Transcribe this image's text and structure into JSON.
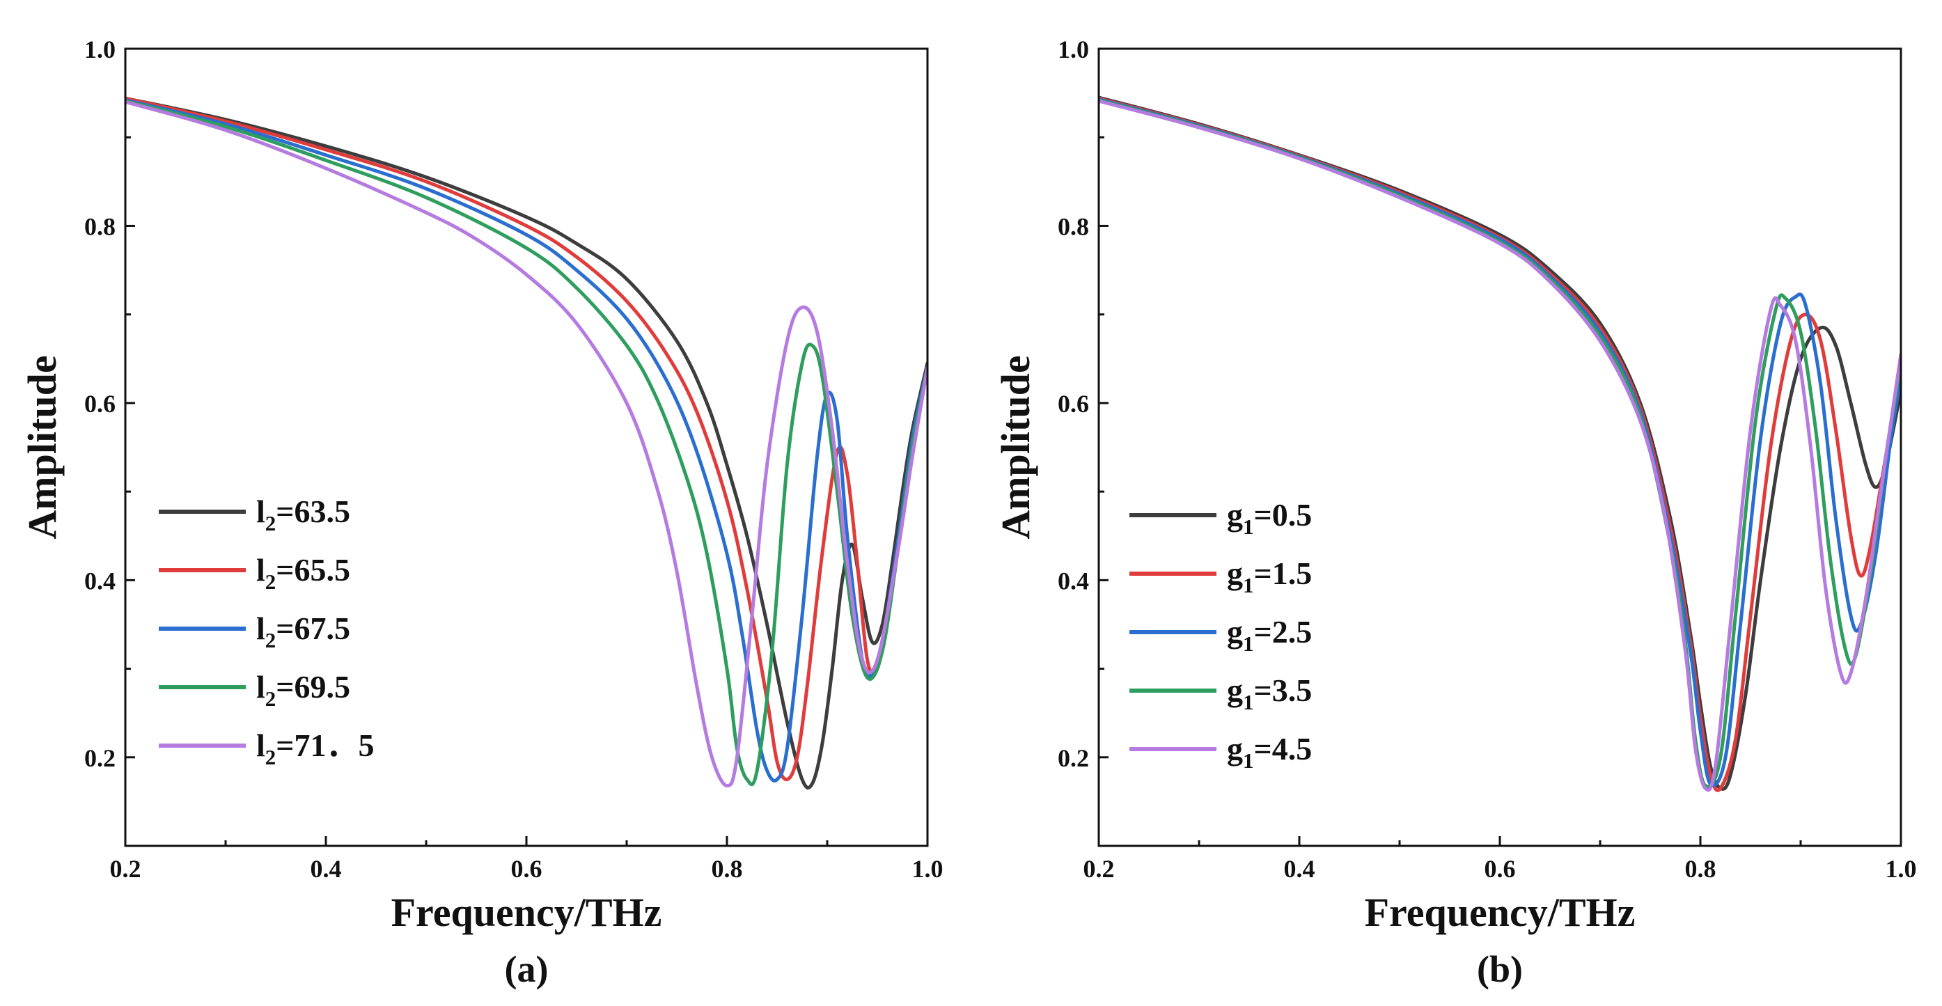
{
  "chart_data": [
    {
      "type": "line",
      "panel_label": "(a)",
      "xlabel": "Frequency/THz",
      "ylabel": "Amplitude",
      "xlim": [
        0.2,
        1.0
      ],
      "ylim": [
        0.1,
        1.0
      ],
      "x_ticks": [
        0.2,
        0.4,
        0.6,
        0.8,
        1.0
      ],
      "x_tick_labels": [
        "0.2",
        "0.4",
        "0.6",
        "0.8",
        "1.0"
      ],
      "y_ticks": [
        0.2,
        0.4,
        0.6,
        0.8,
        1.0
      ],
      "y_tick_labels": [
        "0.2",
        "0.4",
        "0.6",
        "0.8",
        "1.0"
      ],
      "legend_position": "lower-left",
      "series": [
        {
          "name": "l2=63.5",
          "label_main": "l",
          "label_sub": "2",
          "label_rest": "=63.5",
          "color": "#3d3d3d",
          "x": [
            0.2,
            0.3,
            0.4,
            0.5,
            0.6,
            0.65,
            0.7,
            0.75,
            0.78,
            0.8,
            0.82,
            0.84,
            0.86,
            0.875,
            0.885,
            0.895,
            0.905,
            0.915,
            0.925,
            0.935,
            0.945,
            0.955,
            0.965,
            0.975,
            0.985,
            1.0
          ],
          "y": [
            0.944,
            0.92,
            0.89,
            0.855,
            0.81,
            0.78,
            0.74,
            0.67,
            0.6,
            0.53,
            0.45,
            0.35,
            0.24,
            0.175,
            0.17,
            0.215,
            0.3,
            0.4,
            0.44,
            0.38,
            0.33,
            0.35,
            0.42,
            0.5,
            0.57,
            0.645
          ]
        },
        {
          "name": "l2=65.5",
          "label_main": "l",
          "label_sub": "2",
          "label_rest": "=65.5",
          "color": "#e03c3c",
          "x": [
            0.2,
            0.3,
            0.4,
            0.5,
            0.6,
            0.65,
            0.7,
            0.74,
            0.77,
            0.8,
            0.82,
            0.84,
            0.85,
            0.86,
            0.87,
            0.88,
            0.895,
            0.91,
            0.92,
            0.93,
            0.94,
            0.95,
            0.96,
            0.975,
            0.99,
            1.0
          ],
          "y": [
            0.944,
            0.918,
            0.886,
            0.85,
            0.8,
            0.765,
            0.715,
            0.655,
            0.59,
            0.49,
            0.39,
            0.265,
            0.195,
            0.175,
            0.2,
            0.28,
            0.43,
            0.545,
            0.52,
            0.42,
            0.31,
            0.3,
            0.36,
            0.47,
            0.58,
            0.64
          ]
        },
        {
          "name": "l2=67.5",
          "label_main": "l",
          "label_sub": "2",
          "label_rest": "=67.5",
          "color": "#2a6fcf",
          "x": [
            0.2,
            0.3,
            0.4,
            0.5,
            0.6,
            0.65,
            0.7,
            0.74,
            0.77,
            0.8,
            0.815,
            0.83,
            0.84,
            0.85,
            0.86,
            0.875,
            0.89,
            0.9,
            0.91,
            0.92,
            0.935,
            0.945,
            0.955,
            0.97,
            0.985,
            1.0
          ],
          "y": [
            0.942,
            0.915,
            0.88,
            0.842,
            0.79,
            0.75,
            0.695,
            0.625,
            0.545,
            0.43,
            0.34,
            0.23,
            0.185,
            0.175,
            0.21,
            0.36,
            0.54,
            0.61,
            0.58,
            0.45,
            0.31,
            0.295,
            0.33,
            0.44,
            0.56,
            0.64
          ]
        },
        {
          "name": "l2=69.5",
          "label_main": "l",
          "label_sub": "2",
          "label_rest": "=69.5",
          "color": "#2e9e5e",
          "x": [
            0.2,
            0.3,
            0.4,
            0.5,
            0.6,
            0.65,
            0.7,
            0.73,
            0.76,
            0.78,
            0.8,
            0.81,
            0.82,
            0.83,
            0.845,
            0.86,
            0.875,
            0.885,
            0.895,
            0.91,
            0.925,
            0.94,
            0.955,
            0.97,
            0.985,
            1.0
          ],
          "y": [
            0.941,
            0.912,
            0.874,
            0.832,
            0.775,
            0.73,
            0.665,
            0.605,
            0.515,
            0.43,
            0.3,
            0.21,
            0.175,
            0.185,
            0.32,
            0.53,
            0.645,
            0.665,
            0.63,
            0.5,
            0.36,
            0.29,
            0.32,
            0.43,
            0.55,
            0.64
          ]
        },
        {
          "name": "l2=71.5",
          "label_main": "l",
          "label_sub": "2",
          "label_rest": "=71．5",
          "color": "#b57be0",
          "x": [
            0.2,
            0.3,
            0.4,
            0.5,
            0.55,
            0.6,
            0.65,
            0.7,
            0.73,
            0.75,
            0.77,
            0.785,
            0.8,
            0.81,
            0.825,
            0.84,
            0.86,
            0.875,
            0.89,
            0.905,
            0.92,
            0.935,
            0.95,
            0.97,
            0.985,
            1.0
          ],
          "y": [
            0.94,
            0.908,
            0.865,
            0.815,
            0.785,
            0.745,
            0.69,
            0.6,
            0.505,
            0.41,
            0.28,
            0.2,
            0.168,
            0.2,
            0.36,
            0.53,
            0.67,
            0.708,
            0.68,
            0.57,
            0.42,
            0.31,
            0.31,
            0.43,
            0.54,
            0.64
          ]
        }
      ]
    },
    {
      "type": "line",
      "panel_label": "(b)",
      "xlabel": "Frequency/THz",
      "ylabel": "Amplitude",
      "xlim": [
        0.2,
        1.0
      ],
      "ylim": [
        0.1,
        1.0
      ],
      "x_ticks": [
        0.2,
        0.4,
        0.6,
        0.8,
        1.0
      ],
      "x_tick_labels": [
        "0.2",
        "0.4",
        "0.6",
        "0.8",
        "1.0"
      ],
      "y_ticks": [
        0.2,
        0.4,
        0.6,
        0.8,
        1.0
      ],
      "y_tick_labels": [
        "0.2",
        "0.4",
        "0.6",
        "0.8",
        "1.0"
      ],
      "legend_position": "lower-left",
      "series": [
        {
          "name": "g1=0.5",
          "label_main": "g",
          "label_sub": "1",
          "label_rest": "=0.5",
          "color": "#3d3d3d",
          "x": [
            0.2,
            0.3,
            0.4,
            0.5,
            0.6,
            0.65,
            0.7,
            0.74,
            0.77,
            0.79,
            0.8,
            0.81,
            0.82,
            0.83,
            0.845,
            0.86,
            0.88,
            0.9,
            0.92,
            0.935,
            0.95,
            0.965,
            0.975,
            0.985,
            1.0
          ],
          "y": [
            0.945,
            0.915,
            0.88,
            0.84,
            0.79,
            0.75,
            0.69,
            0.6,
            0.47,
            0.34,
            0.26,
            0.19,
            0.165,
            0.18,
            0.27,
            0.4,
            0.55,
            0.65,
            0.685,
            0.665,
            0.6,
            0.53,
            0.505,
            0.53,
            0.615
          ]
        },
        {
          "name": "g1=1.5",
          "label_main": "g",
          "label_sub": "1",
          "label_rest": "=1.5",
          "color": "#e03c3c",
          "x": [
            0.2,
            0.3,
            0.4,
            0.5,
            0.6,
            0.65,
            0.7,
            0.74,
            0.77,
            0.79,
            0.8,
            0.81,
            0.82,
            0.835,
            0.85,
            0.87,
            0.89,
            0.905,
            0.92,
            0.935,
            0.95,
            0.96,
            0.97,
            0.985,
            1.0
          ],
          "y": [
            0.944,
            0.914,
            0.879,
            0.838,
            0.787,
            0.746,
            0.685,
            0.595,
            0.46,
            0.33,
            0.245,
            0.18,
            0.165,
            0.22,
            0.36,
            0.55,
            0.67,
            0.7,
            0.67,
            0.57,
            0.45,
            0.405,
            0.44,
            0.54,
            0.625
          ]
        },
        {
          "name": "g1=2.5",
          "label_main": "g",
          "label_sub": "1",
          "label_rest": "=2.5",
          "color": "#2a6fcf",
          "x": [
            0.2,
            0.3,
            0.4,
            0.5,
            0.6,
            0.65,
            0.7,
            0.74,
            0.77,
            0.79,
            0.8,
            0.81,
            0.825,
            0.84,
            0.86,
            0.88,
            0.895,
            0.905,
            0.92,
            0.935,
            0.95,
            0.96,
            0.975,
            0.99,
            1.0
          ],
          "y": [
            0.943,
            0.913,
            0.878,
            0.836,
            0.785,
            0.743,
            0.68,
            0.59,
            0.45,
            0.32,
            0.23,
            0.17,
            0.2,
            0.35,
            0.56,
            0.69,
            0.72,
            0.71,
            0.62,
            0.47,
            0.36,
            0.35,
            0.43,
            0.56,
            0.63
          ]
        },
        {
          "name": "g1=3.5",
          "label_main": "g",
          "label_sub": "1",
          "label_rest": "=3.5",
          "color": "#2e9e5e",
          "x": [
            0.2,
            0.3,
            0.4,
            0.5,
            0.6,
            0.65,
            0.7,
            0.74,
            0.77,
            0.785,
            0.795,
            0.805,
            0.82,
            0.835,
            0.855,
            0.875,
            0.885,
            0.9,
            0.915,
            0.93,
            0.945,
            0.955,
            0.97,
            0.985,
            1.0
          ],
          "y": [
            0.942,
            0.912,
            0.877,
            0.834,
            0.782,
            0.74,
            0.675,
            0.585,
            0.44,
            0.33,
            0.22,
            0.168,
            0.2,
            0.36,
            0.58,
            0.705,
            0.718,
            0.68,
            0.57,
            0.42,
            0.32,
            0.315,
            0.41,
            0.54,
            0.645
          ]
        },
        {
          "name": "g1=4.5",
          "label_main": "g",
          "label_sub": "1",
          "label_rest": "=4.5",
          "color": "#b57be0",
          "x": [
            0.2,
            0.3,
            0.4,
            0.5,
            0.6,
            0.65,
            0.7,
            0.74,
            0.765,
            0.785,
            0.795,
            0.805,
            0.815,
            0.83,
            0.85,
            0.87,
            0.88,
            0.895,
            0.91,
            0.925,
            0.94,
            0.95,
            0.965,
            0.98,
            1.0
          ],
          "y": [
            0.941,
            0.911,
            0.876,
            0.832,
            0.78,
            0.737,
            0.67,
            0.58,
            0.47,
            0.32,
            0.21,
            0.165,
            0.19,
            0.35,
            0.57,
            0.705,
            0.71,
            0.67,
            0.55,
            0.39,
            0.295,
            0.295,
            0.38,
            0.5,
            0.655
          ]
        }
      ]
    }
  ]
}
